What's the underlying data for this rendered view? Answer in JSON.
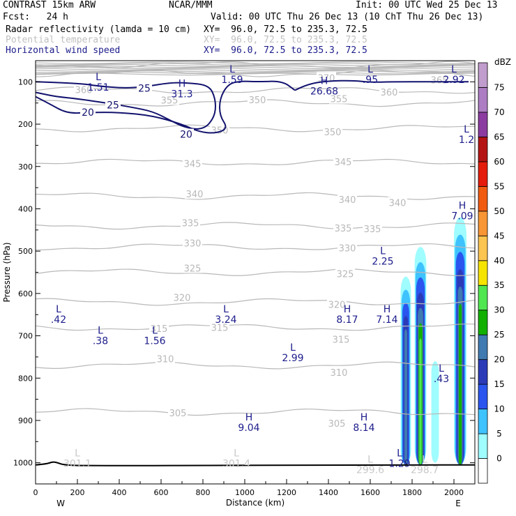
{
  "header": {
    "model": "CONTRAST 15km ARW",
    "org": "NCAR/MMM",
    "init": "Init: 00 UTC Wed 25 Dec 13",
    "fcst": "Fcst:   24 h",
    "valid": "Valid: 00 UTC Thu 26 Dec 13 (10 ChT Thu 26 Dec 13)",
    "field1_name": "Radar reflectivity (lamda = 10 cm)",
    "field1_xy": "XY=  96.0, 72.5 to 235.3, 72.5",
    "field2_name": "Potential temperature",
    "field2_xy": "XY=  96.0, 72.5 to 235.3, 72.5",
    "field3_name": "Horizontal wind speed",
    "field3_xy": "XY=  96.0, 72.5 to 235.3, 72.5"
  },
  "colors": {
    "theta": "#b8b8b8",
    "wind": "#12126e",
    "axis": "#000000",
    "header_field3": "#1c1c8c"
  },
  "chart_data": {
    "type": "contour-cross-section",
    "xlabel": "Distance (km)",
    "ylabel": "Pressure (hPa)",
    "xlim": [
      0,
      2100
    ],
    "ylim": [
      1050,
      50
    ],
    "x_ticks": [
      "0",
      "200",
      "400",
      "600",
      "800",
      "1000",
      "1200",
      "1400",
      "1600",
      "1800",
      "2000"
    ],
    "y_ticks": [
      "100",
      "200",
      "300",
      "400",
      "500",
      "600",
      "700",
      "800",
      "900",
      "1000"
    ],
    "endpoint_labels": [
      "W",
      "E"
    ],
    "colorbar": {
      "unit": "dBZ",
      "levels": [
        "0",
        "5",
        "10",
        "15",
        "20",
        "25",
        "30",
        "35",
        "40",
        "45",
        "50",
        "55",
        "60",
        "65",
        "70",
        "75"
      ],
      "colors": [
        "#ffffff",
        "#9ffcff",
        "#3fc3ff",
        "#2a55ee",
        "#2b3bb8",
        "#3f7ab0",
        "#12b000",
        "#50e650",
        "#f6e400",
        "#fcc450",
        "#f89535",
        "#f05b10",
        "#e41c0c",
        "#b41414",
        "#8c3ca0",
        "#ad7dc3",
        "#c09dcd"
      ]
    },
    "theta_contours": [
      {
        "label": "370",
        "p": 60
      },
      {
        "label": "365",
        "p": 80
      },
      {
        "label": "360",
        "p": 120
      },
      {
        "label": "355",
        "p": 150
      },
      {
        "label": "350",
        "p": 210
      },
      {
        "label": "345",
        "p": 290
      },
      {
        "label": "340",
        "p": 370
      },
      {
        "label": "335",
        "p": 440
      },
      {
        "label": "330",
        "p": 490
      },
      {
        "label": "325",
        "p": 550
      },
      {
        "label": "320",
        "p": 620
      },
      {
        "label": "315",
        "p": 680
      },
      {
        "label": "310",
        "p": 770
      },
      {
        "label": "305",
        "p": 880
      }
    ],
    "theta_labels": [
      {
        "text": "360",
        "x": 230,
        "p": 118
      },
      {
        "text": "355",
        "x": 640,
        "p": 143
      },
      {
        "text": "350",
        "x": 1060,
        "p": 142
      },
      {
        "text": "355",
        "x": 1450,
        "p": 140
      },
      {
        "text": "360",
        "x": 1690,
        "p": 124
      },
      {
        "text": "365",
        "x": 1930,
        "p": 95
      },
      {
        "text": "370",
        "x": 1390,
        "p": 90
      },
      {
        "text": "350",
        "x": 880,
        "p": 214
      },
      {
        "text": "350",
        "x": 1420,
        "p": 218
      },
      {
        "text": "345",
        "x": 750,
        "p": 293
      },
      {
        "text": "345",
        "x": 1470,
        "p": 289
      },
      {
        "text": "340",
        "x": 760,
        "p": 365
      },
      {
        "text": "340",
        "x": 1490,
        "p": 378
      },
      {
        "text": "340",
        "x": 1730,
        "p": 385
      },
      {
        "text": "335",
        "x": 740,
        "p": 433
      },
      {
        "text": "335",
        "x": 1470,
        "p": 445
      },
      {
        "text": "335",
        "x": 1610,
        "p": 447
      },
      {
        "text": "330",
        "x": 750,
        "p": 481
      },
      {
        "text": "330",
        "x": 1490,
        "p": 492
      },
      {
        "text": "325",
        "x": 750,
        "p": 540
      },
      {
        "text": "325",
        "x": 1480,
        "p": 553
      },
      {
        "text": "320",
        "x": 700,
        "p": 609
      },
      {
        "text": "320",
        "x": 1440,
        "p": 626
      },
      {
        "text": "315",
        "x": 590,
        "p": 683
      },
      {
        "text": "315",
        "x": 1460,
        "p": 708
      },
      {
        "text": "315",
        "x": 880,
        "p": 680
      },
      {
        "text": "310",
        "x": 620,
        "p": 754
      },
      {
        "text": "310",
        "x": 1450,
        "p": 786
      },
      {
        "text": "305",
        "x": 680,
        "p": 882
      },
      {
        "text": "305",
        "x": 1440,
        "p": 907
      }
    ],
    "wind_contours": [
      {
        "label": "25",
        "points": [
          [
            0,
            100
          ],
          [
            200,
            103
          ],
          [
            300,
            110
          ],
          [
            420,
            115
          ],
          [
            520,
            112
          ],
          [
            640,
            102
          ],
          [
            720,
            102
          ],
          [
            830,
            108
          ],
          [
            860,
            140
          ],
          [
            860,
            175
          ],
          [
            830,
            200
          ],
          [
            800,
            210
          ],
          [
            760,
            212
          ],
          [
            700,
            205
          ],
          [
            640,
            190
          ],
          [
            560,
            170
          ],
          [
            460,
            160
          ],
          [
            340,
            150
          ],
          [
            200,
            140
          ],
          [
            100,
            135
          ],
          [
            30,
            128
          ],
          [
            0,
            125
          ]
        ]
      },
      {
        "label": "20",
        "points": [
          [
            0,
            135
          ],
          [
            60,
            150
          ],
          [
            150,
            175
          ],
          [
            260,
            172
          ],
          [
            400,
            172
          ],
          [
            560,
            180
          ],
          [
            700,
            200
          ],
          [
            780,
            218
          ],
          [
            860,
            222
          ],
          [
            920,
            210
          ],
          [
            880,
            180
          ],
          [
            880,
            140
          ],
          [
            920,
            105
          ],
          [
            980,
            98
          ],
          [
            1060,
            100
          ],
          [
            1180,
            98
          ],
          [
            1240,
            120
          ]
        ]
      },
      {
        "label": "25",
        "points": [
          [
            1240,
            120
          ],
          [
            1300,
            105
          ],
          [
            1400,
            98
          ],
          [
            1520,
            97
          ],
          [
            1600,
            101
          ],
          [
            1700,
            100
          ],
          [
            1900,
            100
          ],
          [
            2070,
            100
          ]
        ]
      }
    ],
    "wind_labels": [
      {
        "text": "25",
        "x": 520,
        "p": 115
      },
      {
        "text": "25",
        "x": 370,
        "p": 155
      },
      {
        "text": "20",
        "x": 250,
        "p": 172
      },
      {
        "text": "20",
        "x": 720,
        "p": 224
      }
    ],
    "extrema": [
      {
        "type": "L",
        "value": "1.51",
        "x": 300,
        "p": 96,
        "color": "#1c1c8c"
      },
      {
        "type": "L",
        "value": "1.59",
        "x": 940,
        "p": 78,
        "color": "#1c1c8c"
      },
      {
        "type": "L",
        "value": ".95",
        "x": 1600,
        "p": 78,
        "color": "#1c1c8c"
      },
      {
        "type": "L",
        "value": "2.92",
        "x": 2000,
        "p": 78,
        "color": "#1c1c8c"
      },
      {
        "type": "H",
        "value": "31.3",
        "x": 700,
        "p": 112,
        "color": "#1c1c8c"
      },
      {
        "type": "H",
        "value": "26.68",
        "x": 1380,
        "p": 105,
        "color": "#1c1c8c"
      },
      {
        "type": "L",
        "value": "1.2",
        "x": 2060,
        "p": 220,
        "color": "#1c1c8c"
      },
      {
        "type": "H",
        "value": "7.09",
        "x": 2040,
        "p": 400,
        "color": "#1c1c8c"
      },
      {
        "type": "L",
        "value": "2.25",
        "x": 1660,
        "p": 507,
        "color": "#1c1c8c"
      },
      {
        "type": "L",
        "value": ".42",
        "x": 110,
        "p": 645,
        "color": "#1c1c8c"
      },
      {
        "type": "L",
        "value": ".38",
        "x": 310,
        "p": 695,
        "color": "#1c1c8c"
      },
      {
        "type": "L",
        "value": "1.56",
        "x": 570,
        "p": 695,
        "color": "#1c1c8c"
      },
      {
        "type": "L",
        "value": "3.24",
        "x": 910,
        "p": 645,
        "color": "#1c1c8c"
      },
      {
        "type": "L",
        "value": "2.99",
        "x": 1230,
        "p": 735,
        "color": "#1c1c8c"
      },
      {
        "type": "H",
        "value": "8.17",
        "x": 1490,
        "p": 645,
        "color": "#1c1c8c"
      },
      {
        "type": "H",
        "value": "7.14",
        "x": 1680,
        "p": 645,
        "color": "#1c1c8c"
      },
      {
        "type": "L",
        "value": ".43",
        "x": 1940,
        "p": 785,
        "color": "#1c1c8c"
      },
      {
        "type": "H",
        "value": "9.04",
        "x": 1020,
        "p": 900,
        "color": "#1c1c8c"
      },
      {
        "type": "H",
        "value": "8.14",
        "x": 1570,
        "p": 900,
        "color": "#1c1c8c"
      },
      {
        "type": "L",
        "value": "1.29",
        "x": 1740,
        "p": 985,
        "color": "#1c1c8c"
      },
      {
        "type": "L",
        "value": "301.1",
        "x": 200,
        "p": 985,
        "color": "#c8c8c8"
      },
      {
        "type": "L",
        "value": "301.4",
        "x": 960,
        "p": 985,
        "color": "#c8c8c8"
      },
      {
        "type": "L",
        "value": "299.6",
        "x": 1600,
        "p": 1000,
        "color": "#c8c8c8"
      },
      {
        "type": "L",
        "value": "298.7",
        "x": 1860,
        "p": 1000,
        "color": "#c8c8c8"
      }
    ],
    "reflectivity_cells": [
      {
        "x": 1770,
        "top": 560,
        "bottom": 1005,
        "halfwidth": 25,
        "levels": [
          5,
          10,
          15,
          20,
          25
        ]
      },
      {
        "x": 1840,
        "top": 490,
        "bottom": 1005,
        "halfwidth": 28,
        "levels": [
          5,
          10,
          15,
          20,
          25,
          30,
          35
        ]
      },
      {
        "x": 1910,
        "top": 760,
        "bottom": 1000,
        "halfwidth": 18,
        "levels": [
          5
        ]
      },
      {
        "x": 2030,
        "top": 420,
        "bottom": 1005,
        "halfwidth": 30,
        "levels": [
          5,
          10,
          15,
          20,
          25,
          30
        ]
      }
    ],
    "terrain": [
      [
        0,
        1005
      ],
      [
        50,
        1003
      ],
      [
        80,
        998
      ],
      [
        100,
        999
      ],
      [
        140,
        1006
      ],
      [
        300,
        1007
      ],
      [
        1000,
        1006
      ],
      [
        2100,
        1005
      ]
    ]
  }
}
